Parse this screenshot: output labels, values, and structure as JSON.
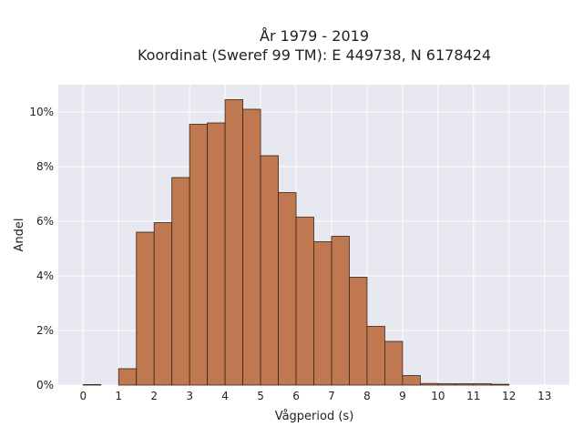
{
  "chart_data": {
    "type": "bar",
    "title_line1": "År 1979 - 2019",
    "title_line2": "Koordinat (Sweref 99 TM): E 449738, N 6178424",
    "xlabel": "Vågperiod (s)",
    "ylabel": "Andel",
    "bin_width": 0.5,
    "xlim": [
      -0.7,
      13.7
    ],
    "ylim": [
      0,
      11
    ],
    "x_ticks": [
      0,
      1,
      2,
      3,
      4,
      5,
      6,
      7,
      8,
      9,
      10,
      11,
      12,
      13
    ],
    "x_tick_labels": [
      "0",
      "1",
      "2",
      "3",
      "4",
      "5",
      "6",
      "7",
      "8",
      "9",
      "10",
      "11",
      "12",
      "13"
    ],
    "y_ticks": [
      0,
      2,
      4,
      6,
      8,
      10
    ],
    "y_tick_labels": [
      "0%",
      "2%",
      "4%",
      "6%",
      "8%",
      "10%"
    ],
    "bins": [
      {
        "start": 0.0,
        "value": 0.02
      },
      {
        "start": 0.5,
        "value": 0.0
      },
      {
        "start": 1.0,
        "value": 0.6
      },
      {
        "start": 1.5,
        "value": 5.6
      },
      {
        "start": 2.0,
        "value": 5.95
      },
      {
        "start": 2.5,
        "value": 7.6
      },
      {
        "start": 3.0,
        "value": 9.55
      },
      {
        "start": 3.5,
        "value": 9.6
      },
      {
        "start": 4.0,
        "value": 10.45
      },
      {
        "start": 4.5,
        "value": 10.1
      },
      {
        "start": 5.0,
        "value": 8.4
      },
      {
        "start": 5.5,
        "value": 7.05
      },
      {
        "start": 6.0,
        "value": 6.15
      },
      {
        "start": 6.5,
        "value": 5.25
      },
      {
        "start": 7.0,
        "value": 5.45
      },
      {
        "start": 7.5,
        "value": 3.95
      },
      {
        "start": 8.0,
        "value": 2.15
      },
      {
        "start": 8.5,
        "value": 1.6
      },
      {
        "start": 9.0,
        "value": 0.35
      },
      {
        "start": 9.5,
        "value": 0.06
      },
      {
        "start": 10.0,
        "value": 0.05
      },
      {
        "start": 10.5,
        "value": 0.05
      },
      {
        "start": 11.0,
        "value": 0.05
      },
      {
        "start": 11.5,
        "value": 0.03
      },
      {
        "start": 12.0,
        "value": 0.0
      },
      {
        "start": 12.5,
        "value": 0.0
      },
      {
        "start": 13.0,
        "value": 0.0
      }
    ],
    "grid": true,
    "colors": {
      "bar_fill": "#c07850",
      "bar_edge": "#3a2418",
      "plot_background": "#e8e8f0",
      "grid": "#ffffff"
    }
  }
}
